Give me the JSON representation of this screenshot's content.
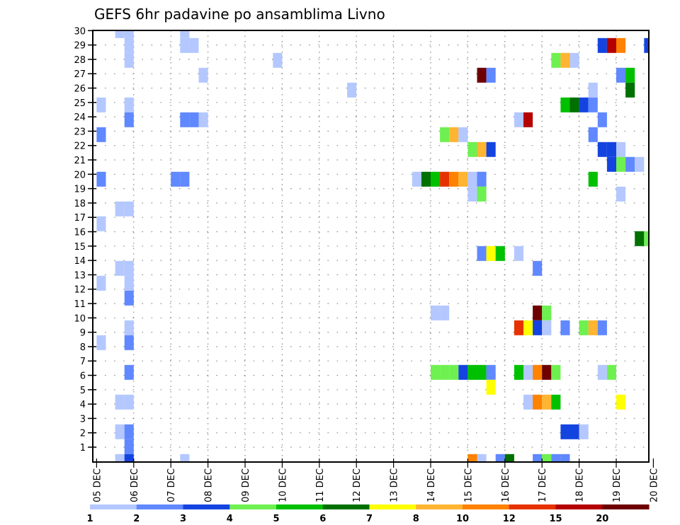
{
  "chart_data": {
    "type": "heatmap",
    "title": "GEFS 6hr padavine po ansamblima Livno",
    "xlabel": "",
    "ylabel": "",
    "x_unit": "6-hour step from 05 DEC 00Z",
    "x_ticks": [
      "05 DEC",
      "06 DEC",
      "07 DEC",
      "08 DEC",
      "09 DEC",
      "10 DEC",
      "11 DEC",
      "12 DEC",
      "13 DEC",
      "14 DEC",
      "15 DEC",
      "16 DEC",
      "17 DEC",
      "18 DEC",
      "19 DEC",
      "20 DEC"
    ],
    "y_ticks": [
      "1",
      "2",
      "3",
      "4",
      "5",
      "6",
      "7",
      "8",
      "9",
      "10",
      "11",
      "12",
      "13",
      "14",
      "15",
      "16",
      "17",
      "18",
      "19",
      "20",
      "21",
      "22",
      "23",
      "24",
      "25",
      "26",
      "27",
      "28",
      "29",
      "30"
    ],
    "ylim": [
      0,
      30
    ],
    "members": 30,
    "steps": 60,
    "grid": true,
    "legend": {
      "placement": "bottom",
      "labels": [
        "1",
        "2",
        "3",
        "4",
        "5",
        "6",
        "7",
        "8",
        "10",
        "12",
        "15",
        "20"
      ],
      "colors": [
        "#b4c8ff",
        "#6088ff",
        "#1444e0",
        "#6ef050",
        "#00c000",
        "#007000",
        "#ffff00",
        "#ffb432",
        "#ff8200",
        "#e63200",
        "#b40000",
        "#6e0000"
      ]
    },
    "cells_format": [
      "member",
      "step",
      "class"
    ],
    "cells": [
      [
        29,
        2,
        1
      ],
      [
        29,
        3,
        1
      ],
      [
        29,
        9,
        1
      ],
      [
        28,
        3,
        1
      ],
      [
        28,
        9,
        1
      ],
      [
        28,
        10,
        1
      ],
      [
        28,
        54,
        3
      ],
      [
        28,
        55,
        11
      ],
      [
        28,
        56,
        9
      ],
      [
        28,
        59,
        3
      ],
      [
        27,
        3,
        1
      ],
      [
        27,
        19,
        1
      ],
      [
        27,
        49,
        4
      ],
      [
        27,
        50,
        8
      ],
      [
        27,
        51,
        1
      ],
      [
        26,
        11,
        1
      ],
      [
        26,
        41,
        12
      ],
      [
        26,
        42,
        2
      ],
      [
        26,
        56,
        2
      ],
      [
        26,
        57,
        5
      ],
      [
        25,
        27,
        1
      ],
      [
        25,
        53,
        1
      ],
      [
        25,
        57,
        6
      ],
      [
        24,
        0,
        1
      ],
      [
        24,
        3,
        1
      ],
      [
        24,
        50,
        5
      ],
      [
        24,
        51,
        6
      ],
      [
        24,
        52,
        3
      ],
      [
        24,
        53,
        2
      ],
      [
        23,
        3,
        2
      ],
      [
        23,
        9,
        2
      ],
      [
        23,
        10,
        2
      ],
      [
        23,
        11,
        1
      ],
      [
        23,
        45,
        1
      ],
      [
        23,
        46,
        11
      ],
      [
        23,
        54,
        2
      ],
      [
        22,
        0,
        2
      ],
      [
        22,
        37,
        4
      ],
      [
        22,
        38,
        8
      ],
      [
        22,
        39,
        1
      ],
      [
        22,
        53,
        2
      ],
      [
        21,
        40,
        4
      ],
      [
        21,
        41,
        8
      ],
      [
        21,
        42,
        3
      ],
      [
        21,
        54,
        3
      ],
      [
        21,
        55,
        3
      ],
      [
        21,
        56,
        1
      ],
      [
        20,
        55,
        3
      ],
      [
        20,
        56,
        4
      ],
      [
        20,
        57,
        2
      ],
      [
        20,
        58,
        1
      ],
      [
        19,
        0,
        2
      ],
      [
        19,
        8,
        2
      ],
      [
        19,
        9,
        2
      ],
      [
        19,
        34,
        1
      ],
      [
        19,
        35,
        6
      ],
      [
        19,
        36,
        5
      ],
      [
        19,
        37,
        10
      ],
      [
        19,
        38,
        9
      ],
      [
        19,
        39,
        8
      ],
      [
        19,
        40,
        1
      ],
      [
        19,
        41,
        2
      ],
      [
        19,
        53,
        5
      ],
      [
        18,
        40,
        1
      ],
      [
        18,
        41,
        4
      ],
      [
        18,
        56,
        1
      ],
      [
        17,
        2,
        1
      ],
      [
        17,
        3,
        1
      ],
      [
        16,
        0,
        1
      ],
      [
        15,
        58,
        6
      ],
      [
        15,
        59,
        4
      ],
      [
        14,
        41,
        2
      ],
      [
        14,
        42,
        7
      ],
      [
        14,
        43,
        5
      ],
      [
        14,
        45,
        1
      ],
      [
        13,
        2,
        1
      ],
      [
        13,
        3,
        1
      ],
      [
        13,
        47,
        2
      ],
      [
        12,
        0,
        1
      ],
      [
        12,
        3,
        1
      ],
      [
        11,
        3,
        2
      ],
      [
        10,
        36,
        1
      ],
      [
        10,
        37,
        1
      ],
      [
        10,
        47,
        12
      ],
      [
        10,
        48,
        4
      ],
      [
        9,
        3,
        1
      ],
      [
        9,
        45,
        10
      ],
      [
        9,
        46,
        7
      ],
      [
        9,
        47,
        3
      ],
      [
        9,
        48,
        1
      ],
      [
        9,
        50,
        2
      ],
      [
        9,
        52,
        4
      ],
      [
        9,
        53,
        8
      ],
      [
        9,
        54,
        2
      ],
      [
        8,
        0,
        1
      ],
      [
        8,
        3,
        2
      ],
      [
        6,
        3,
        2
      ],
      [
        6,
        36,
        4
      ],
      [
        6,
        37,
        4
      ],
      [
        6,
        38,
        4
      ],
      [
        6,
        39,
        3
      ],
      [
        6,
        40,
        5
      ],
      [
        6,
        41,
        5
      ],
      [
        6,
        42,
        2
      ],
      [
        6,
        45,
        5
      ],
      [
        6,
        46,
        1
      ],
      [
        6,
        47,
        9
      ],
      [
        6,
        48,
        12
      ],
      [
        6,
        49,
        4
      ],
      [
        6,
        54,
        1
      ],
      [
        6,
        55,
        4
      ],
      [
        5,
        42,
        7
      ],
      [
        4,
        2,
        1
      ],
      [
        4,
        3,
        1
      ],
      [
        4,
        46,
        1
      ],
      [
        4,
        47,
        9
      ],
      [
        4,
        48,
        8
      ],
      [
        4,
        49,
        5
      ],
      [
        4,
        56,
        7
      ],
      [
        2,
        2,
        1
      ],
      [
        2,
        3,
        2
      ],
      [
        2,
        50,
        3
      ],
      [
        2,
        51,
        3
      ],
      [
        2,
        52,
        1
      ],
      [
        1,
        3,
        2
      ],
      [
        0,
        2,
        1
      ],
      [
        0,
        3,
        3
      ],
      [
        0,
        9,
        1
      ],
      [
        0,
        40,
        9
      ],
      [
        0,
        41,
        1
      ],
      [
        0,
        43,
        2
      ],
      [
        0,
        44,
        6
      ],
      [
        0,
        47,
        2
      ],
      [
        0,
        48,
        4
      ],
      [
        0,
        49,
        2
      ],
      [
        0,
        50,
        2
      ]
    ]
  }
}
